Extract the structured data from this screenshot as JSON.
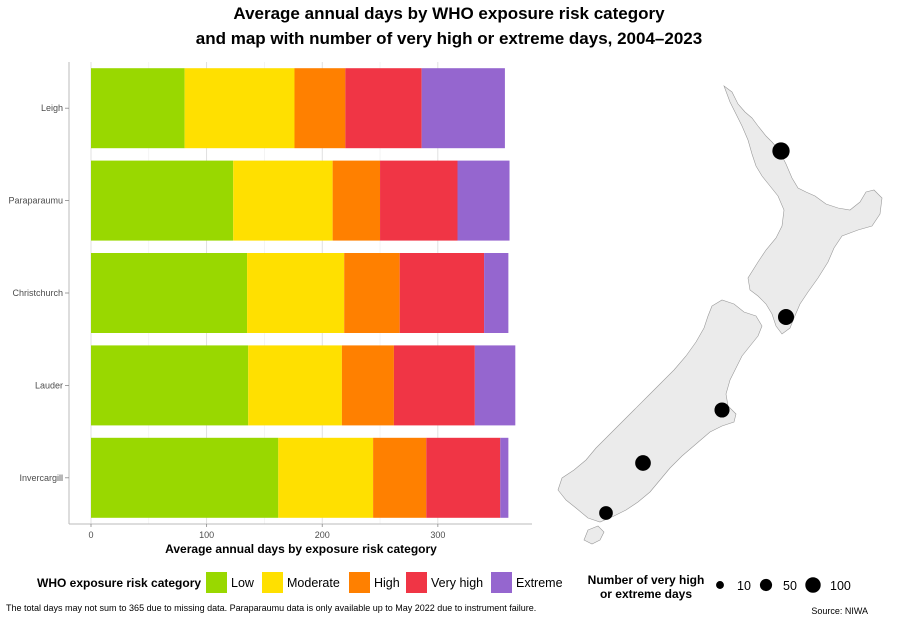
{
  "title_line1": "Average annual days by WHO exposure risk category",
  "title_line2": "and map with number of very high or extreme days, 2004–2023",
  "chart_data": [
    {
      "type": "bar",
      "orientation": "horizontal",
      "stacked": true,
      "categories": [
        "Leigh",
        "Paraparaumu",
        "Christchurch",
        "Lauder",
        "Invercargill"
      ],
      "series": [
        {
          "name": "Low",
          "color": "#99d800",
          "values": [
            81,
            123,
            135,
            136,
            162
          ]
        },
        {
          "name": "Moderate",
          "color": "#ffe000",
          "values": [
            95,
            86,
            84,
            81,
            82
          ]
        },
        {
          "name": "High",
          "color": "#ff8000",
          "values": [
            44,
            41,
            48,
            45,
            46
          ]
        },
        {
          "name": "Very high",
          "color": "#f03545",
          "values": [
            66,
            67,
            73,
            70,
            64
          ]
        },
        {
          "name": "Extreme",
          "color": "#9566cf",
          "values": [
            72,
            45,
            21,
            35,
            7
          ]
        }
      ],
      "xlabel": "Average annual days by exposure risk category",
      "ylabel": "",
      "xlim": [
        0,
        383
      ],
      "xticks": [
        "0",
        "100",
        "200",
        "300"
      ],
      "grid": true,
      "legend": {
        "title": "WHO exposure risk category",
        "placement": "bottom",
        "labels": [
          "Low",
          "Moderate",
          "High",
          "Very high",
          "Extreme"
        ]
      }
    },
    {
      "type": "scatter",
      "description_type": "map bubble",
      "sites": [
        {
          "name": "Leigh",
          "value": 138
        },
        {
          "name": "Paraparaumu",
          "value": 112
        },
        {
          "name": "Christchurch",
          "value": 94
        },
        {
          "name": "Lauder",
          "value": 105
        },
        {
          "name": "Invercargill",
          "value": 71
        }
      ],
      "legend": {
        "title_line1": "Number of very high",
        "title_line2": "or extreme days",
        "placement": "bottom-right",
        "labels": [
          "10",
          "50",
          "100"
        ],
        "values": [
          10,
          50,
          100
        ]
      }
    }
  ],
  "footnote": "The total days may not sum to 365 due to missing data. Paraparaumu data is only available up to May 2022 due to instrument failure.",
  "source": "Source: NIWA",
  "colors": {
    "grid": "#d9d9d9",
    "land": "#ebebeb",
    "coast": "#9a9a9a",
    "dot": "#000000"
  }
}
